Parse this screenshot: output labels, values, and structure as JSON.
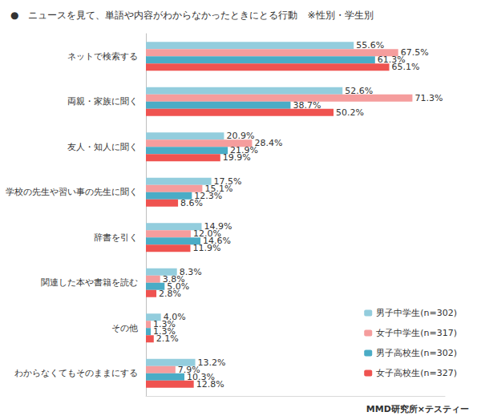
{
  "chart_data": {
    "type": "bar",
    "title": "●　ニュースを見て、単語や内容がわからなかったときにとる行動　※性別・学生別",
    "orientation": "horizontal",
    "categories": [
      "ネットで検索する",
      "両親・家族に聞く",
      "友人・知人に聞く",
      "学校の先生や習い事の先生に聞く",
      "辞書を引く",
      "関連した本や書籍を読む",
      "その他",
      "わからなくてもそのままにする"
    ],
    "series": [
      {
        "name": "男子中学生(n=302)",
        "color": "#93cddd",
        "values": [
          55.6,
          52.6,
          20.9,
          17.5,
          14.9,
          8.3,
          4.0,
          13.2
        ],
        "value_labels": [
          "55.6%",
          "52.6%",
          "20.9%",
          "17.5%",
          "14.9%",
          "8.3%",
          "4.0%",
          "13.2%"
        ]
      },
      {
        "name": "女子中学生(n=317)",
        "color": "#f59d9d",
        "values": [
          67.5,
          71.3,
          28.4,
          15.1,
          12.0,
          3.8,
          1.3,
          7.9
        ],
        "value_labels": [
          "67.5%",
          "71.3%",
          "28.4%",
          "15.1%",
          "12.0%",
          "3.8%",
          "1.3%",
          "7.9%"
        ]
      },
      {
        "name": "男子高校生(n=302)",
        "color": "#4aacc6",
        "values": [
          61.3,
          38.7,
          21.9,
          12.3,
          14.6,
          5.0,
          1.3,
          10.3
        ],
        "value_labels": [
          "61.3%",
          "38.7%",
          "21.9%",
          "12.3%",
          "14.6%",
          "5.0%",
          "1.3%",
          "10.3%"
        ]
      },
      {
        "name": "女子高校生(n=327)",
        "color": "#ef5350",
        "values": [
          65.1,
          50.2,
          19.9,
          8.6,
          11.9,
          2.8,
          2.1,
          12.8
        ],
        "value_labels": [
          "65.1%",
          "50.2%",
          "19.9%",
          "8.6%",
          "11.9%",
          "2.8%",
          "2.1%",
          "12.8%"
        ]
      }
    ],
    "xlim": [
      0,
      80
    ],
    "data_labels": true,
    "tick_labels": "y",
    "grid": false,
    "legend": "lower right",
    "annotations": [
      "MMD研究所×テスティー"
    ]
  }
}
